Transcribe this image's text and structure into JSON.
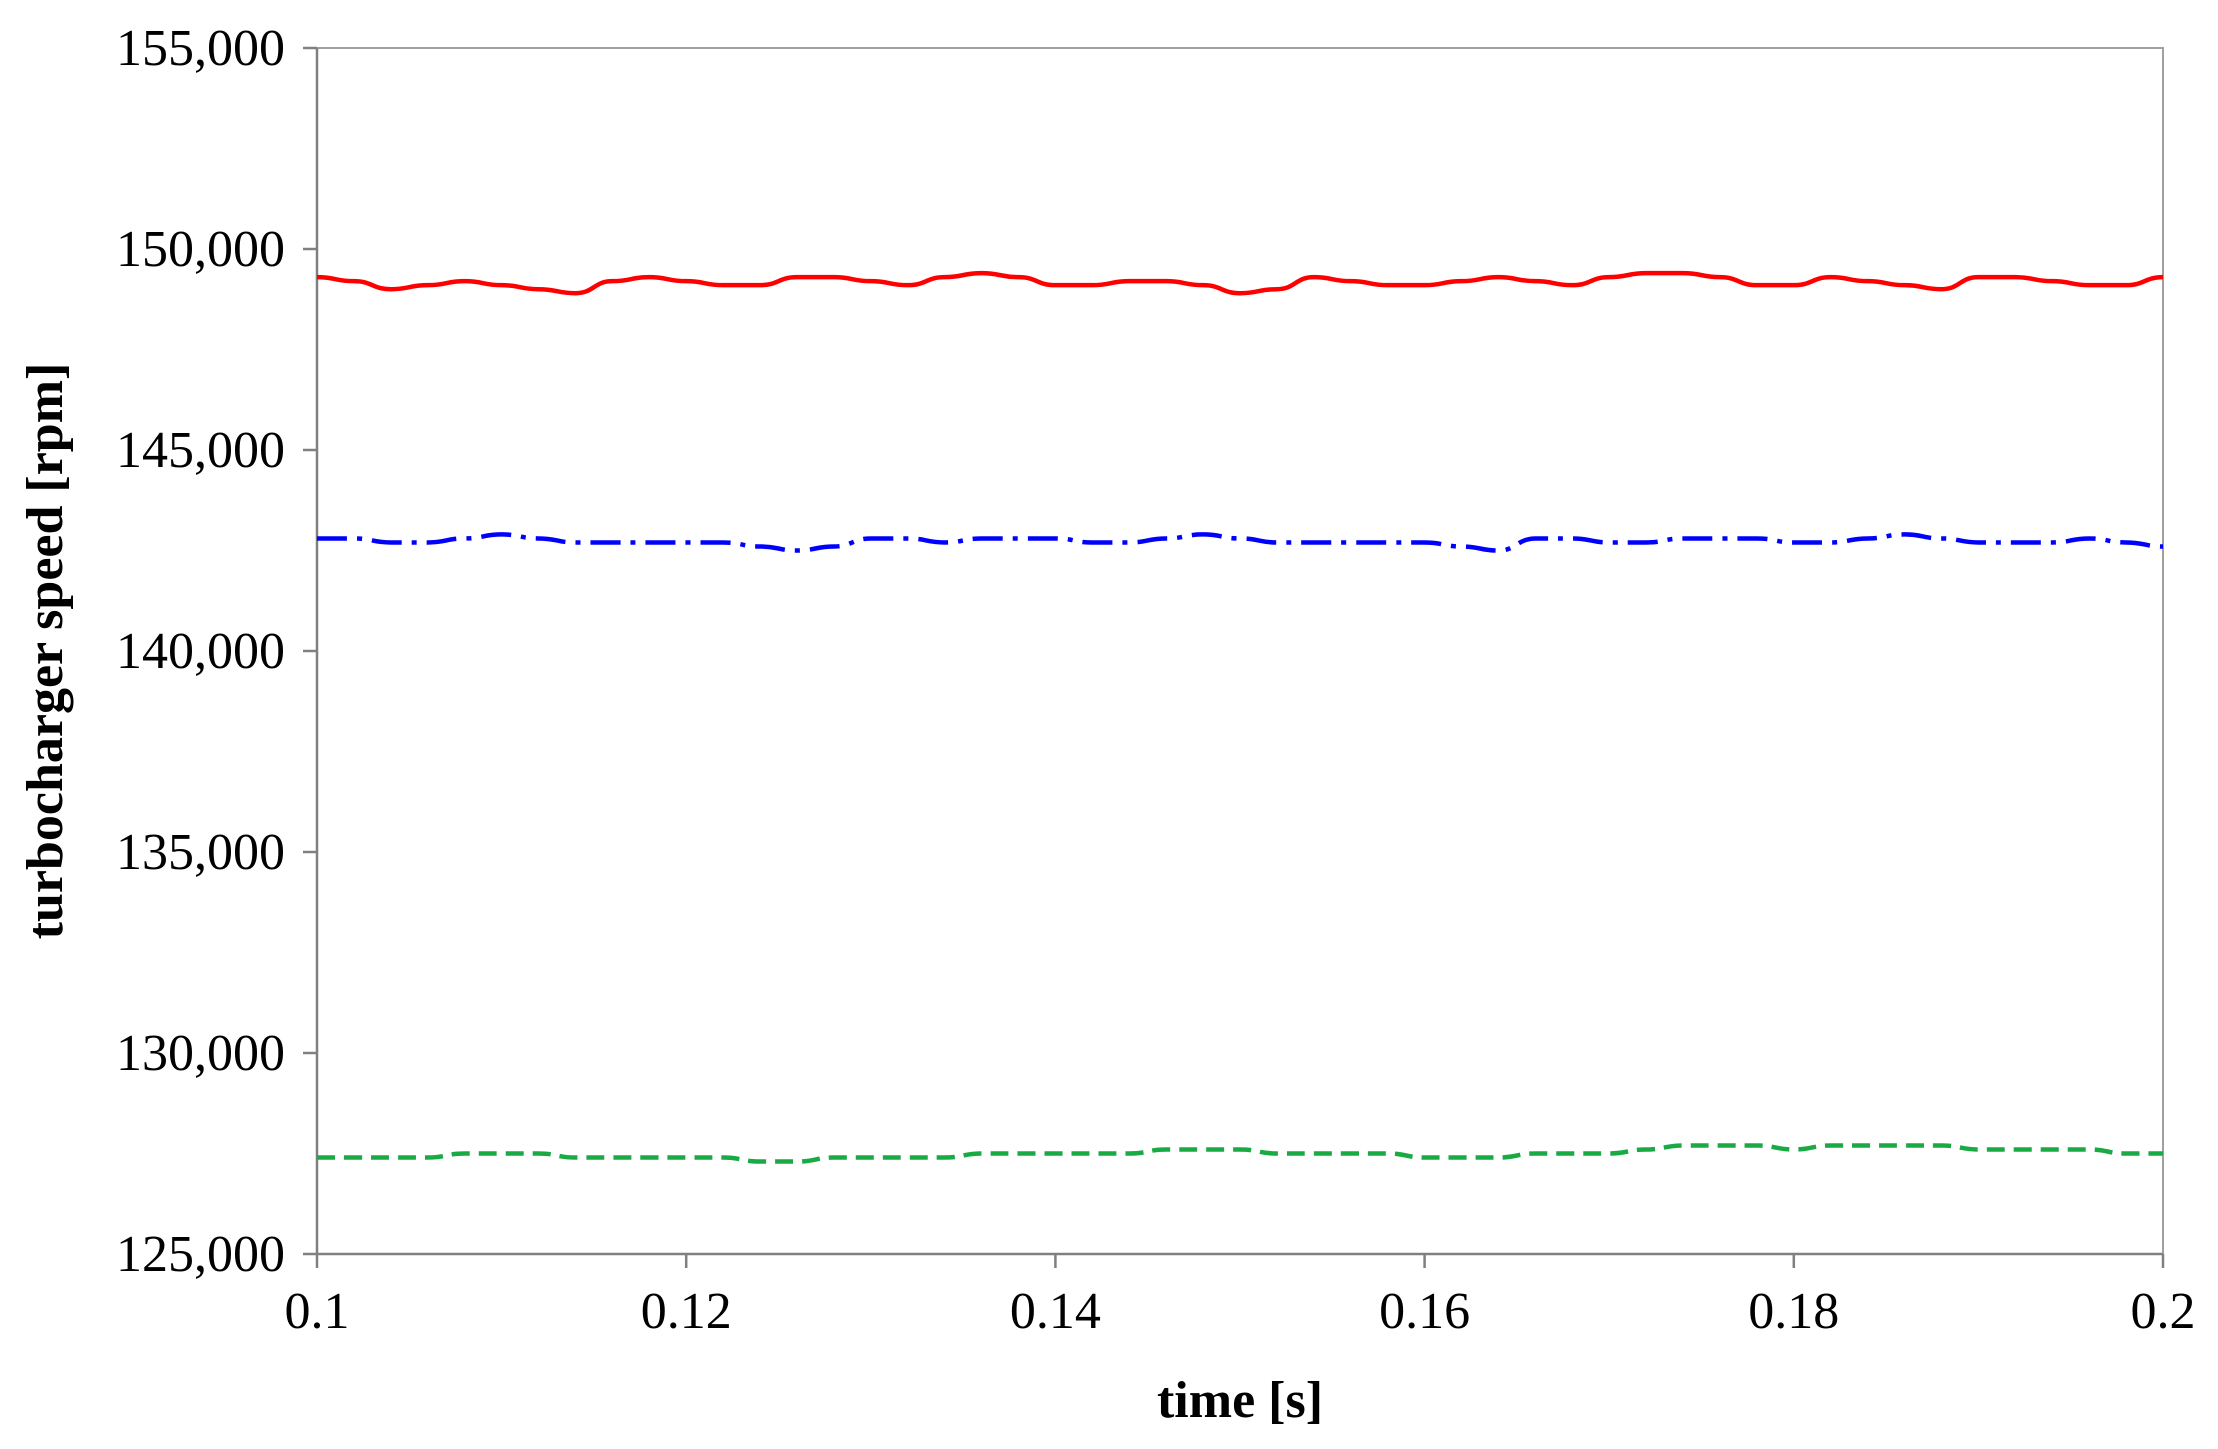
{
  "chart_data": {
    "type": "line",
    "title": "",
    "xlabel": "time [s]",
    "ylabel": "turbocharger speed [rpm]",
    "xlim": [
      0.1,
      0.2
    ],
    "ylim": [
      125000,
      155000
    ],
    "x_ticks": [
      "0.1",
      "0.12",
      "0.14",
      "0.16",
      "0.18",
      "0.2"
    ],
    "x_tick_values": [
      0.1,
      0.12,
      0.14,
      0.16,
      0.18,
      0.2
    ],
    "y_ticks": [
      "125,000",
      "130,000",
      "135,000",
      "140,000",
      "145,000",
      "150,000",
      "155,000"
    ],
    "y_tick_values": [
      125000,
      130000,
      135000,
      140000,
      145000,
      150000,
      155000
    ],
    "grid": false,
    "legend": "none",
    "series": [
      {
        "color": "#ff0000",
        "style": "solid",
        "x": [
          0.1,
          0.102,
          0.104,
          0.106,
          0.108,
          0.11,
          0.112,
          0.114,
          0.116,
          0.118,
          0.12,
          0.122,
          0.124,
          0.126,
          0.128,
          0.13,
          0.132,
          0.134,
          0.136,
          0.138,
          0.14,
          0.142,
          0.144,
          0.146,
          0.148,
          0.15,
          0.152,
          0.154,
          0.156,
          0.158,
          0.16,
          0.162,
          0.164,
          0.166,
          0.168,
          0.17,
          0.172,
          0.174,
          0.176,
          0.178,
          0.18,
          0.182,
          0.184,
          0.186,
          0.188,
          0.19,
          0.192,
          0.194,
          0.196,
          0.198,
          0.2
        ],
        "y": [
          149300,
          149200,
          149000,
          149100,
          149200,
          149100,
          149000,
          148900,
          149200,
          149300,
          149200,
          149100,
          149100,
          149300,
          149300,
          149200,
          149100,
          149300,
          149400,
          149300,
          149100,
          149100,
          149200,
          149200,
          149100,
          148900,
          149000,
          149300,
          149200,
          149100,
          149100,
          149200,
          149300,
          149200,
          149100,
          149300,
          149400,
          149400,
          149300,
          149100,
          149100,
          149300,
          149200,
          149100,
          149000,
          149300,
          149300,
          149200,
          149100,
          149100,
          149300
        ]
      },
      {
        "color": "#0000ff",
        "style": "dash-dot",
        "x": [
          0.1,
          0.102,
          0.104,
          0.106,
          0.108,
          0.11,
          0.112,
          0.114,
          0.116,
          0.118,
          0.12,
          0.122,
          0.124,
          0.126,
          0.128,
          0.13,
          0.132,
          0.134,
          0.136,
          0.138,
          0.14,
          0.142,
          0.144,
          0.146,
          0.148,
          0.15,
          0.152,
          0.154,
          0.156,
          0.158,
          0.16,
          0.162,
          0.164,
          0.166,
          0.168,
          0.17,
          0.172,
          0.174,
          0.176,
          0.178,
          0.18,
          0.182,
          0.184,
          0.186,
          0.188,
          0.19,
          0.192,
          0.194,
          0.196,
          0.198,
          0.2
        ],
        "y": [
          142800,
          142800,
          142700,
          142700,
          142800,
          142900,
          142800,
          142700,
          142700,
          142700,
          142700,
          142700,
          142600,
          142500,
          142600,
          142800,
          142800,
          142700,
          142800,
          142800,
          142800,
          142700,
          142700,
          142800,
          142900,
          142800,
          142700,
          142700,
          142700,
          142700,
          142700,
          142600,
          142500,
          142800,
          142800,
          142700,
          142700,
          142800,
          142800,
          142800,
          142700,
          142700,
          142800,
          142900,
          142800,
          142700,
          142700,
          142700,
          142800,
          142700,
          142600
        ]
      },
      {
        "color": "#1aaa44",
        "style": "dashed",
        "x": [
          0.1,
          0.102,
          0.104,
          0.106,
          0.108,
          0.11,
          0.112,
          0.114,
          0.116,
          0.118,
          0.12,
          0.122,
          0.124,
          0.126,
          0.128,
          0.13,
          0.132,
          0.134,
          0.136,
          0.138,
          0.14,
          0.142,
          0.144,
          0.146,
          0.148,
          0.15,
          0.152,
          0.154,
          0.156,
          0.158,
          0.16,
          0.162,
          0.164,
          0.166,
          0.168,
          0.17,
          0.172,
          0.174,
          0.176,
          0.178,
          0.18,
          0.182,
          0.184,
          0.186,
          0.188,
          0.19,
          0.192,
          0.194,
          0.196,
          0.198,
          0.2
        ],
        "y": [
          127400,
          127400,
          127400,
          127400,
          127500,
          127500,
          127500,
          127400,
          127400,
          127400,
          127400,
          127400,
          127300,
          127300,
          127400,
          127400,
          127400,
          127400,
          127500,
          127500,
          127500,
          127500,
          127500,
          127600,
          127600,
          127600,
          127500,
          127500,
          127500,
          127500,
          127400,
          127400,
          127400,
          127500,
          127500,
          127500,
          127600,
          127700,
          127700,
          127700,
          127600,
          127700,
          127700,
          127700,
          127700,
          127600,
          127600,
          127600,
          127600,
          127500,
          127500
        ]
      }
    ]
  }
}
